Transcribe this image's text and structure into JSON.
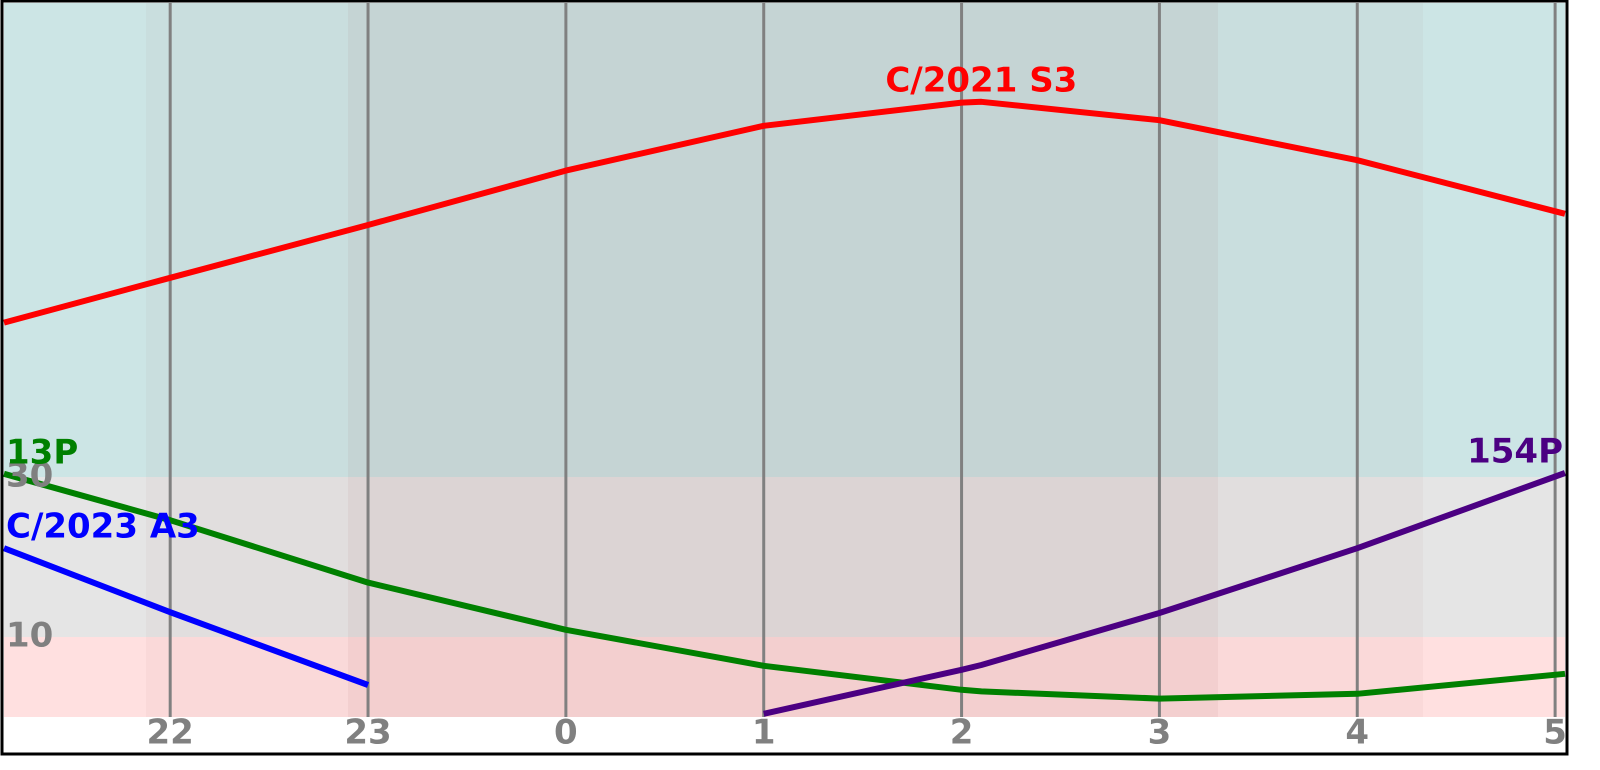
{
  "chart_data": {
    "type": "line",
    "x": [
      21.16,
      22,
      23,
      24,
      25,
      26,
      26.1,
      27,
      28,
      29.05
    ],
    "series": [
      {
        "name": "C/2021 S3",
        "color": "#ff0000",
        "values": [
          49.3,
          54.9,
          61.5,
          68.3,
          73.9,
          76.8,
          76.9,
          74.6,
          69.6,
          62.9
        ]
      },
      {
        "name": "13P",
        "color": "#008000",
        "values": [
          30.4,
          24.6,
          16.8,
          10.9,
          6.4,
          3.4,
          3.2,
          2.3,
          2.9,
          5.4
        ]
      },
      {
        "name": "C/2023 A3",
        "color": "#0000ff",
        "values": [
          21.1,
          13.1,
          4,
          null,
          null,
          null,
          null,
          null,
          null,
          null
        ]
      },
      {
        "name": "154P",
        "color": "#4b0082",
        "values": [
          null,
          null,
          null,
          null,
          0.4,
          5.9,
          6.5,
          13,
          21.1,
          30.5
        ]
      }
    ],
    "xlim": [
      21.16,
      29.05
    ],
    "xticks": [
      22,
      23,
      {
        "value": 24,
        "label": "0"
      },
      {
        "value": 25,
        "label": "1"
      },
      {
        "value": 26,
        "label": "2"
      },
      {
        "value": 27,
        "label": "3"
      },
      {
        "value": 28,
        "label": "4"
      },
      {
        "value": 29,
        "label": "5"
      }
    ],
    "ylim": [
      0,
      89
    ],
    "yticks": [
      10,
      30
    ],
    "grid": true
  }
}
